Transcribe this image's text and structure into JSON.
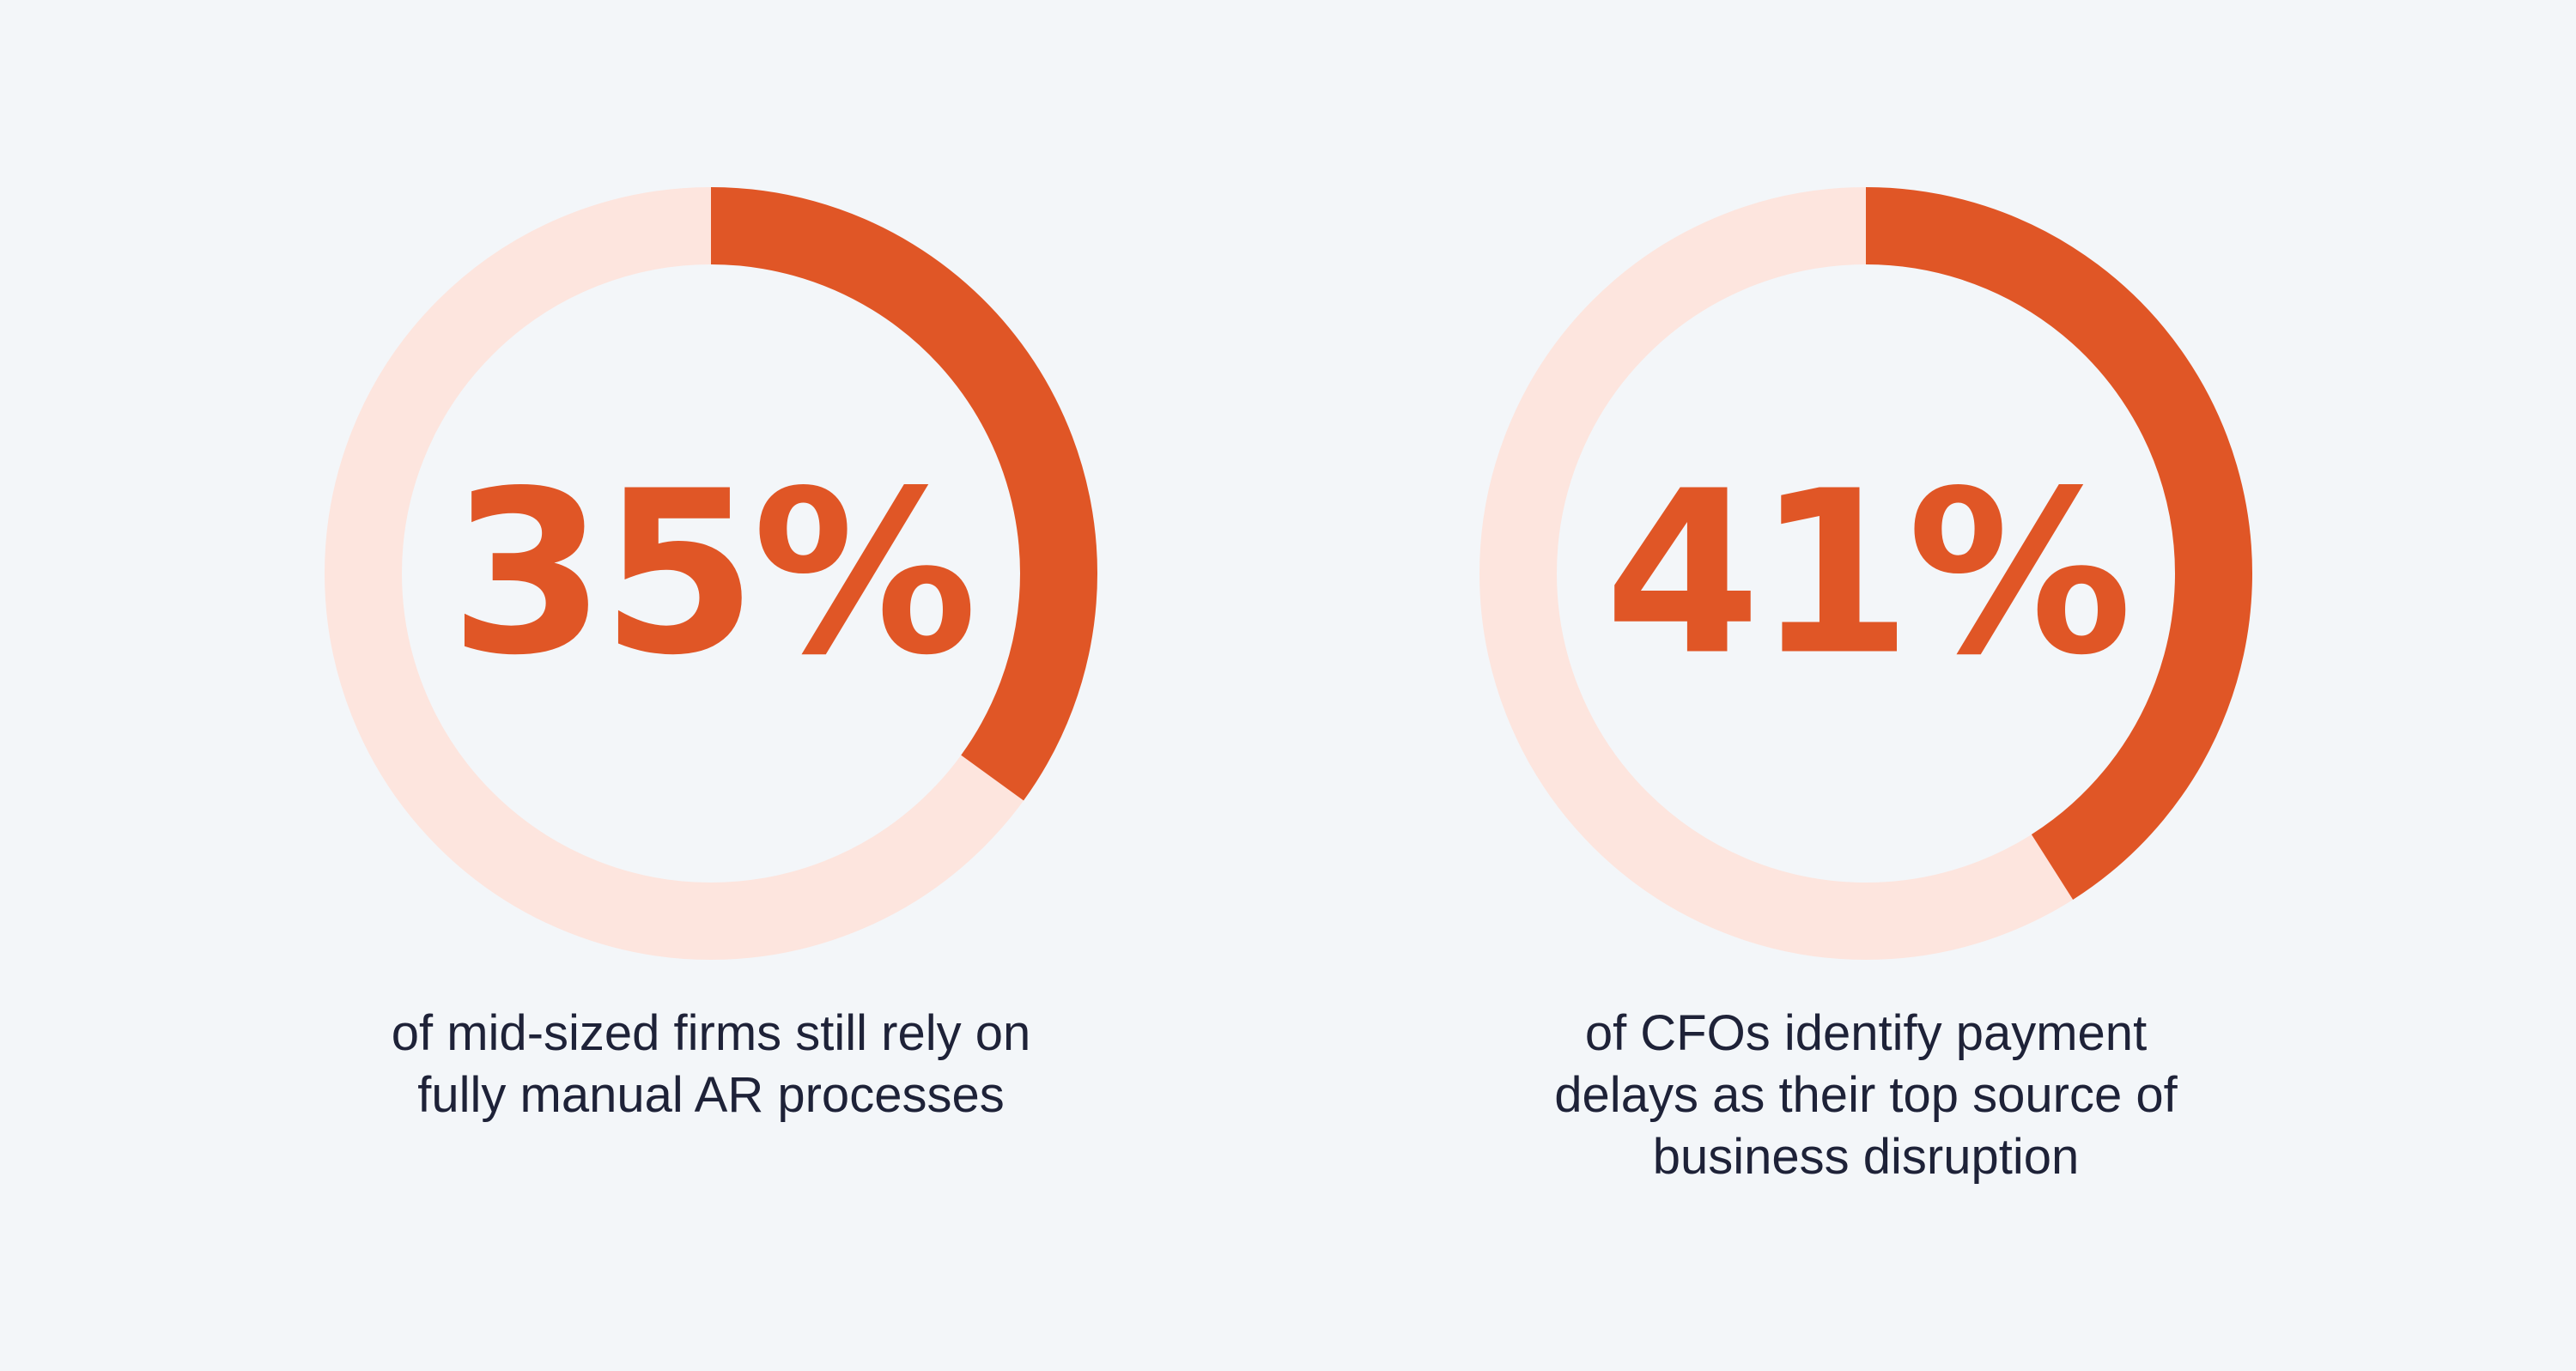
{
  "colors": {
    "background": "#f3f6f9",
    "track": "#fde5de",
    "accent": "#e05626",
    "text": "#1e2238"
  },
  "chart_data": [
    {
      "type": "pie",
      "variant": "donut",
      "value": 35,
      "max": 100,
      "label": "35%",
      "caption_lines": [
        "of mid-sized firms still rely on",
        "fully manual AR processes"
      ]
    },
    {
      "type": "pie",
      "variant": "donut",
      "value": 41,
      "max": 100,
      "label": "41%",
      "caption_lines": [
        "of CFOs identify payment",
        "delays as their top source of",
        "business disruption"
      ]
    }
  ]
}
